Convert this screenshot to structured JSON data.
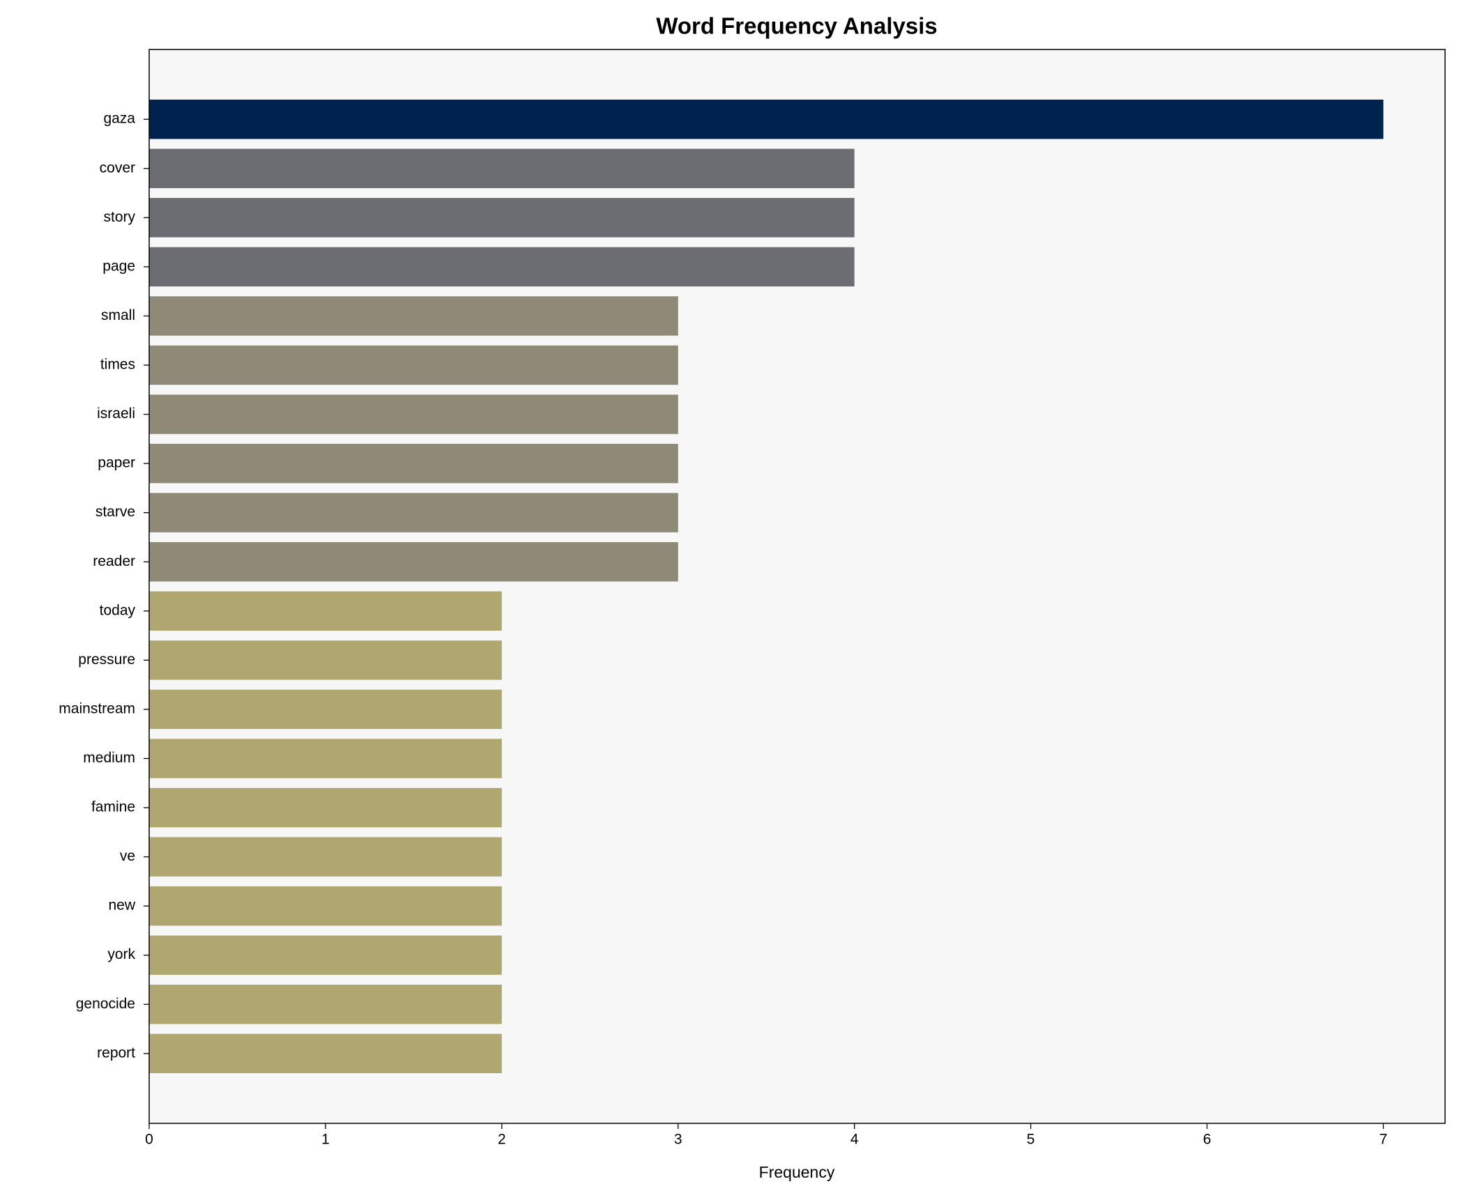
{
  "chart_data": {
    "type": "bar",
    "orientation": "horizontal",
    "title": "Word Frequency Analysis",
    "xlabel": "Frequency",
    "categories": [
      "gaza",
      "cover",
      "story",
      "page",
      "small",
      "times",
      "israeli",
      "paper",
      "starve",
      "reader",
      "today",
      "pressure",
      "mainstream",
      "medium",
      "famine",
      "ve",
      "new",
      "york",
      "genocide",
      "report"
    ],
    "values": [
      7,
      4,
      4,
      4,
      3,
      3,
      3,
      3,
      3,
      3,
      2,
      2,
      2,
      2,
      2,
      2,
      2,
      2,
      2,
      2
    ],
    "colors": [
      "#00224e",
      "#6b6d72",
      "#6b6d72",
      "#6b6d72",
      "#8f8a78",
      "#8f8a78",
      "#8f8a78",
      "#8f8a78",
      "#8f8a78",
      "#8f8a78",
      "#b0a770",
      "#b0a770",
      "#b0a770",
      "#b0a770",
      "#b0a770",
      "#b0a770",
      "#b0a770",
      "#b0a770",
      "#b0a770",
      "#b0a770"
    ],
    "xlim": [
      0,
      7.35
    ],
    "xticks": [
      0,
      1,
      2,
      3,
      4,
      5,
      6,
      7
    ],
    "grid": false
  }
}
